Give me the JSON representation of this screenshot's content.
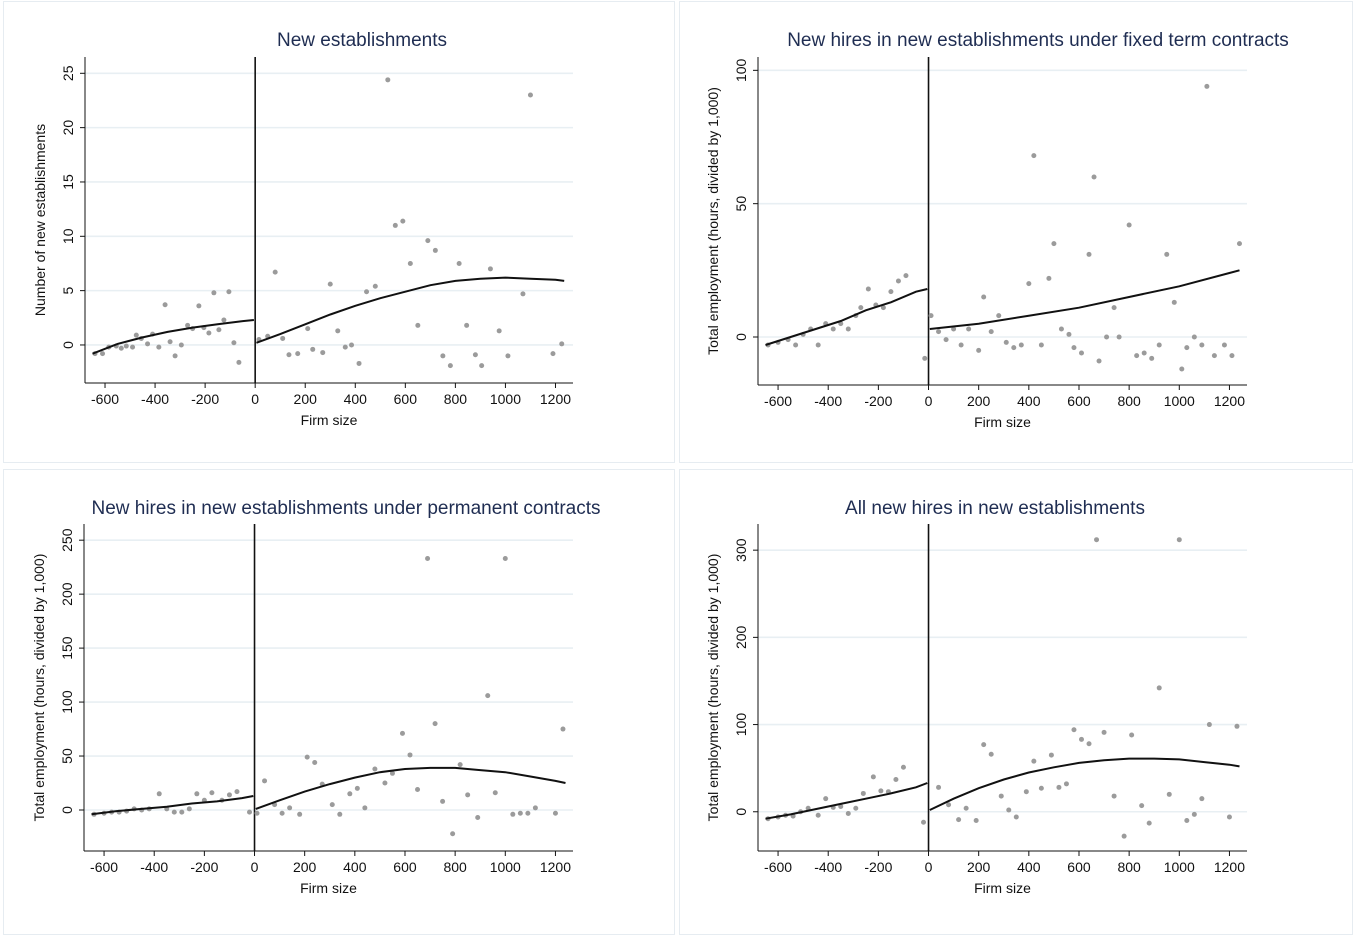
{
  "chart_data": [
    {
      "type": "scatter",
      "title": "New establishments",
      "xlabel": "Firm size",
      "ylabel": "Number of new establishments",
      "xlim": [
        -680,
        1270
      ],
      "ylim": [
        -3.5,
        26.5
      ],
      "xticks": [
        "-600",
        "-400",
        "-200",
        "0",
        "200",
        "400",
        "600",
        "800",
        "1000",
        "1200"
      ],
      "xtick_values": [
        -600,
        -400,
        -200,
        0,
        200,
        400,
        600,
        800,
        1000,
        1200
      ],
      "yticks": [
        "0",
        "5",
        "10",
        "15",
        "20",
        "25"
      ],
      "ytick_values": [
        0,
        5,
        10,
        15,
        20,
        25
      ],
      "grid": true,
      "cutoff": 0,
      "points": [
        [
          -640,
          -0.8
        ],
        [
          -610,
          -0.8
        ],
        [
          -585,
          -0.2
        ],
        [
          -555,
          -0.1
        ],
        [
          -535,
          -0.3
        ],
        [
          -515,
          -0.1
        ],
        [
          -490,
          -0.2
        ],
        [
          -475,
          0.9
        ],
        [
          -455,
          0.6
        ],
        [
          -430,
          0.1
        ],
        [
          -410,
          1.0
        ],
        [
          -385,
          -0.2
        ],
        [
          -360,
          3.7
        ],
        [
          -340,
          0.3
        ],
        [
          -320,
          -1.0
        ],
        [
          -295,
          0.0
        ],
        [
          -270,
          1.8
        ],
        [
          -250,
          1.5
        ],
        [
          -225,
          3.6
        ],
        [
          -205,
          1.6
        ],
        [
          -185,
          1.1
        ],
        [
          -165,
          4.8
        ],
        [
          -145,
          1.4
        ],
        [
          -125,
          2.3
        ],
        [
          -105,
          4.9
        ],
        [
          -85,
          0.2
        ],
        [
          -65,
          -1.6
        ],
        [
          15,
          0.5
        ],
        [
          50,
          0.8
        ],
        [
          80,
          6.7
        ],
        [
          110,
          0.6
        ],
        [
          135,
          -0.9
        ],
        [
          170,
          -0.8
        ],
        [
          210,
          1.5
        ],
        [
          230,
          -0.4
        ],
        [
          270,
          -0.7
        ],
        [
          300,
          5.6
        ],
        [
          330,
          1.3
        ],
        [
          360,
          -0.2
        ],
        [
          385,
          0.0
        ],
        [
          415,
          -1.7
        ],
        [
          445,
          4.9
        ],
        [
          480,
          5.4
        ],
        [
          530,
          24.4
        ],
        [
          560,
          11.0
        ],
        [
          590,
          11.4
        ],
        [
          620,
          7.5
        ],
        [
          650,
          1.8
        ],
        [
          690,
          9.6
        ],
        [
          720,
          8.7
        ],
        [
          750,
          -1.0
        ],
        [
          780,
          -1.9
        ],
        [
          815,
          7.5
        ],
        [
          845,
          1.8
        ],
        [
          880,
          -0.9
        ],
        [
          905,
          -1.9
        ],
        [
          940,
          7.0
        ],
        [
          975,
          1.3
        ],
        [
          1010,
          -1.0
        ],
        [
          1070,
          4.7
        ],
        [
          1100,
          23.0
        ],
        [
          1190,
          -0.8
        ],
        [
          1225,
          0.1
        ]
      ],
      "fit_left": [
        [
          -650,
          -0.8
        ],
        [
          -550,
          0.1
        ],
        [
          -450,
          0.7
        ],
        [
          -350,
          1.2
        ],
        [
          -250,
          1.6
        ],
        [
          -150,
          1.9
        ],
        [
          -50,
          2.2
        ],
        [
          -5,
          2.3
        ]
      ],
      "fit_right": [
        [
          5,
          0.2
        ],
        [
          100,
          1.0
        ],
        [
          200,
          1.9
        ],
        [
          300,
          2.8
        ],
        [
          400,
          3.6
        ],
        [
          500,
          4.3
        ],
        [
          600,
          4.9
        ],
        [
          700,
          5.5
        ],
        [
          800,
          5.9
        ],
        [
          900,
          6.1
        ],
        [
          1000,
          6.2
        ],
        [
          1100,
          6.1
        ],
        [
          1200,
          6.0
        ],
        [
          1235,
          5.9
        ]
      ]
    },
    {
      "type": "scatter",
      "title": "New hires in new establishments under fixed term contracts",
      "xlabel": "Firm size",
      "ylabel": "Total employment (hours, divided by 1,000)",
      "xlim": [
        -680,
        1270
      ],
      "ylim": [
        -18,
        105
      ],
      "xticks": [
        "-600",
        "-400",
        "-200",
        "0",
        "200",
        "400",
        "600",
        "800",
        "1000",
        "1200"
      ],
      "xtick_values": [
        -600,
        -400,
        -200,
        0,
        200,
        400,
        600,
        800,
        1000,
        1200
      ],
      "yticks": [
        "0",
        "50",
        "100"
      ],
      "ytick_values": [
        0,
        50,
        100
      ],
      "grid": true,
      "cutoff": 0,
      "points": [
        [
          -640,
          -3
        ],
        [
          -600,
          -2
        ],
        [
          -560,
          -1
        ],
        [
          -530,
          -3
        ],
        [
          -500,
          1
        ],
        [
          -470,
          3
        ],
        [
          -440,
          -3
        ],
        [
          -410,
          5
        ],
        [
          -380,
          3
        ],
        [
          -350,
          5
        ],
        [
          -320,
          3
        ],
        [
          -290,
          8
        ],
        [
          -270,
          11
        ],
        [
          -240,
          18
        ],
        [
          -210,
          12
        ],
        [
          -180,
          11
        ],
        [
          -150,
          17
        ],
        [
          -120,
          21
        ],
        [
          -90,
          23
        ],
        [
          -15,
          -8
        ],
        [
          10,
          8
        ],
        [
          40,
          2
        ],
        [
          70,
          -1
        ],
        [
          100,
          3
        ],
        [
          130,
          -3
        ],
        [
          160,
          3
        ],
        [
          200,
          -5
        ],
        [
          220,
          15
        ],
        [
          250,
          2
        ],
        [
          280,
          8
        ],
        [
          310,
          -2
        ],
        [
          340,
          -4
        ],
        [
          370,
          -3
        ],
        [
          400,
          20
        ],
        [
          420,
          68
        ],
        [
          450,
          -3
        ],
        [
          480,
          22
        ],
        [
          500,
          35
        ],
        [
          530,
          3
        ],
        [
          560,
          1
        ],
        [
          580,
          -4
        ],
        [
          610,
          -6
        ],
        [
          640,
          31
        ],
        [
          660,
          60
        ],
        [
          680,
          -9
        ],
        [
          710,
          0
        ],
        [
          740,
          11
        ],
        [
          760,
          0
        ],
        [
          800,
          42
        ],
        [
          830,
          -7
        ],
        [
          860,
          -6
        ],
        [
          890,
          -8
        ],
        [
          920,
          -3
        ],
        [
          950,
          31
        ],
        [
          980,
          13
        ],
        [
          1010,
          -12
        ],
        [
          1030,
          -4
        ],
        [
          1060,
          0
        ],
        [
          1090,
          -3
        ],
        [
          1110,
          94
        ],
        [
          1140,
          -7
        ],
        [
          1180,
          -3
        ],
        [
          1210,
          -7
        ],
        [
          1240,
          35
        ]
      ],
      "fit_left": [
        [
          -650,
          -3
        ],
        [
          -550,
          0
        ],
        [
          -450,
          3
        ],
        [
          -350,
          6
        ],
        [
          -250,
          10
        ],
        [
          -150,
          13
        ],
        [
          -50,
          17
        ],
        [
          -5,
          18
        ]
      ],
      "fit_right": [
        [
          5,
          3
        ],
        [
          200,
          5
        ],
        [
          400,
          8
        ],
        [
          600,
          11
        ],
        [
          800,
          15
        ],
        [
          1000,
          19
        ],
        [
          1200,
          24
        ],
        [
          1240,
          25
        ]
      ]
    },
    {
      "type": "scatter",
      "title": "New hires in new establishments under permanent contracts",
      "xlabel": "Firm size",
      "ylabel": "Total employment (hours, divided by 1,000)",
      "xlim": [
        -680,
        1270
      ],
      "ylim": [
        -38,
        265
      ],
      "xticks": [
        "-600",
        "-400",
        "-200",
        "0",
        "200",
        "400",
        "600",
        "800",
        "1000",
        "1200"
      ],
      "xtick_values": [
        -600,
        -400,
        -200,
        0,
        200,
        400,
        600,
        800,
        1000,
        1200
      ],
      "yticks": [
        "0",
        "50",
        "100",
        "150",
        "200",
        "250"
      ],
      "ytick_values": [
        0,
        50,
        100,
        150,
        200,
        250
      ],
      "grid": true,
      "cutoff": 0,
      "points": [
        [
          -640,
          -4
        ],
        [
          -600,
          -3
        ],
        [
          -570,
          -2
        ],
        [
          -540,
          -2
        ],
        [
          -510,
          -1
        ],
        [
          -480,
          1
        ],
        [
          -450,
          0
        ],
        [
          -420,
          1
        ],
        [
          -380,
          15
        ],
        [
          -350,
          1
        ],
        [
          -320,
          -2
        ],
        [
          -290,
          -2
        ],
        [
          -260,
          1
        ],
        [
          -230,
          15
        ],
        [
          -200,
          9
        ],
        [
          -170,
          16
        ],
        [
          -130,
          9
        ],
        [
          -100,
          14
        ],
        [
          -70,
          17
        ],
        [
          -20,
          -2
        ],
        [
          10,
          -3
        ],
        [
          40,
          27
        ],
        [
          80,
          5
        ],
        [
          110,
          -3
        ],
        [
          140,
          2
        ],
        [
          180,
          -4
        ],
        [
          210,
          49
        ],
        [
          240,
          44
        ],
        [
          270,
          24
        ],
        [
          310,
          5
        ],
        [
          340,
          -4
        ],
        [
          380,
          15
        ],
        [
          410,
          20
        ],
        [
          440,
          2
        ],
        [
          480,
          38
        ],
        [
          520,
          25
        ],
        [
          550,
          34
        ],
        [
          590,
          71
        ],
        [
          620,
          51
        ],
        [
          650,
          19
        ],
        [
          690,
          233
        ],
        [
          720,
          80
        ],
        [
          750,
          8
        ],
        [
          790,
          -22
        ],
        [
          820,
          42
        ],
        [
          850,
          14
        ],
        [
          890,
          -7
        ],
        [
          930,
          106
        ],
        [
          960,
          16
        ],
        [
          1000,
          233
        ],
        [
          1030,
          -4
        ],
        [
          1060,
          -3
        ],
        [
          1090,
          -3
        ],
        [
          1120,
          2
        ],
        [
          1200,
          -3
        ],
        [
          1230,
          75
        ]
      ],
      "fit_left": [
        [
          -650,
          -4
        ],
        [
          -550,
          -1
        ],
        [
          -450,
          1
        ],
        [
          -350,
          3
        ],
        [
          -250,
          6
        ],
        [
          -150,
          8
        ],
        [
          -50,
          11
        ],
        [
          -5,
          13
        ]
      ],
      "fit_right": [
        [
          5,
          1
        ],
        [
          100,
          9
        ],
        [
          200,
          17
        ],
        [
          300,
          24
        ],
        [
          400,
          30
        ],
        [
          500,
          35
        ],
        [
          600,
          38
        ],
        [
          700,
          39
        ],
        [
          800,
          39
        ],
        [
          900,
          37
        ],
        [
          1000,
          35
        ],
        [
          1100,
          31
        ],
        [
          1200,
          27
        ],
        [
          1240,
          25
        ]
      ]
    },
    {
      "type": "scatter",
      "title": "All new hires in new establishments",
      "xlabel": "Firm size",
      "ylabel": "Total employment (hours, divided by 1,000)",
      "xlim": [
        -680,
        1270
      ],
      "ylim": [
        -45,
        330
      ],
      "xticks": [
        "-600",
        "-400",
        "-200",
        "0",
        "200",
        "400",
        "600",
        "800",
        "1000",
        "1200"
      ],
      "xtick_values": [
        -600,
        -400,
        -200,
        0,
        200,
        400,
        600,
        800,
        1000,
        1200
      ],
      "yticks": [
        "0",
        "100",
        "200",
        "300"
      ],
      "ytick_values": [
        0,
        100,
        200,
        300
      ],
      "grid": true,
      "cutoff": 0,
      "points": [
        [
          -640,
          -8
        ],
        [
          -600,
          -6
        ],
        [
          -570,
          -4
        ],
        [
          -540,
          -5
        ],
        [
          -510,
          0
        ],
        [
          -480,
          4
        ],
        [
          -440,
          -4
        ],
        [
          -410,
          15
        ],
        [
          -380,
          5
        ],
        [
          -350,
          6
        ],
        [
          -320,
          -2
        ],
        [
          -290,
          4
        ],
        [
          -260,
          21
        ],
        [
          -220,
          40
        ],
        [
          -190,
          24
        ],
        [
          -160,
          23
        ],
        [
          -130,
          37
        ],
        [
          -100,
          51
        ],
        [
          -20,
          -12
        ],
        [
          40,
          28
        ],
        [
          80,
          8
        ],
        [
          120,
          -9
        ],
        [
          150,
          4
        ],
        [
          190,
          -10
        ],
        [
          220,
          77
        ],
        [
          250,
          66
        ],
        [
          290,
          18
        ],
        [
          320,
          2
        ],
        [
          350,
          -6
        ],
        [
          390,
          23
        ],
        [
          420,
          58
        ],
        [
          450,
          27
        ],
        [
          490,
          65
        ],
        [
          520,
          28
        ],
        [
          550,
          32
        ],
        [
          580,
          94
        ],
        [
          610,
          83
        ],
        [
          640,
          78
        ],
        [
          670,
          312
        ],
        [
          700,
          91
        ],
        [
          740,
          18
        ],
        [
          780,
          -28
        ],
        [
          810,
          88
        ],
        [
          850,
          7
        ],
        [
          880,
          -13
        ],
        [
          920,
          142
        ],
        [
          960,
          20
        ],
        [
          1000,
          312
        ],
        [
          1030,
          -10
        ],
        [
          1060,
          -3
        ],
        [
          1090,
          15
        ],
        [
          1120,
          100
        ],
        [
          1200,
          -6
        ],
        [
          1230,
          98
        ]
      ],
      "fit_left": [
        [
          -650,
          -8
        ],
        [
          -550,
          -3
        ],
        [
          -450,
          3
        ],
        [
          -350,
          9
        ],
        [
          -250,
          15
        ],
        [
          -150,
          21
        ],
        [
          -50,
          28
        ],
        [
          -5,
          33
        ]
      ],
      "fit_right": [
        [
          5,
          2
        ],
        [
          100,
          15
        ],
        [
          200,
          27
        ],
        [
          300,
          37
        ],
        [
          400,
          45
        ],
        [
          500,
          51
        ],
        [
          600,
          56
        ],
        [
          700,
          59
        ],
        [
          800,
          61
        ],
        [
          900,
          61
        ],
        [
          1000,
          60
        ],
        [
          1100,
          57
        ],
        [
          1200,
          54
        ],
        [
          1240,
          52
        ]
      ]
    }
  ]
}
